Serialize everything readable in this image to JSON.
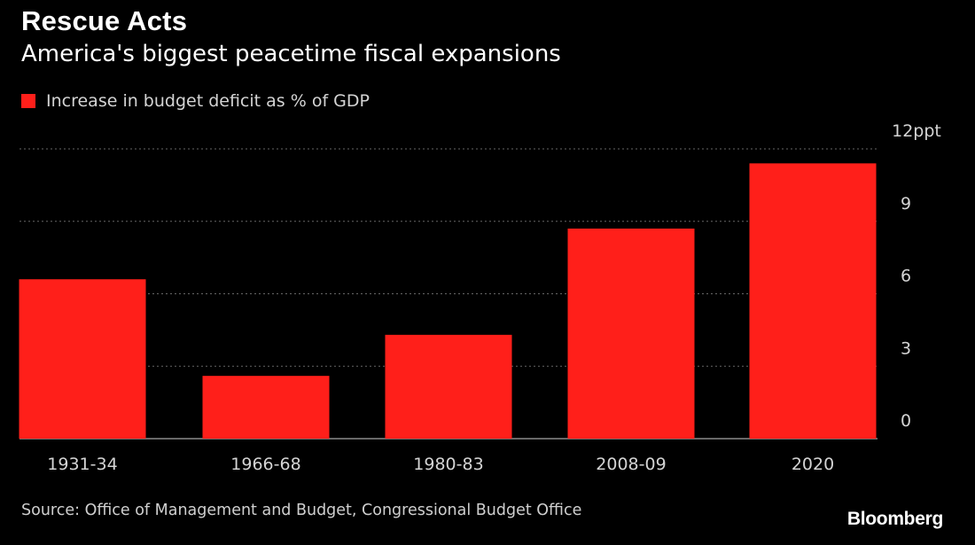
{
  "header": {
    "title": "Rescue Acts",
    "subtitle": "America's biggest peacetime fiscal expansions"
  },
  "legend": {
    "label": "Increase in budget deficit as % of GDP"
  },
  "footer": {
    "source": "Source: Office of Management and Budget, Congressional Budget Office",
    "brand": "Bloomberg"
  },
  "colors": {
    "bar": "#ff1f1a",
    "background": "#000000",
    "grid": "#666666"
  },
  "chart_data": {
    "type": "bar",
    "title": "Rescue Acts",
    "subtitle": "America's biggest peacetime fiscal expansions",
    "xlabel": "",
    "ylabel": "",
    "categories": [
      "1931-34",
      "1966-68",
      "1980-83",
      "2008-09",
      "2020"
    ],
    "series": [
      {
        "name": "Increase in budget deficit as % of GDP",
        "values": [
          6.6,
          2.6,
          4.3,
          8.7,
          11.4
        ]
      }
    ],
    "ylim": [
      0,
      12
    ],
    "yticks": [
      0,
      3,
      6,
      9,
      12
    ],
    "ytick_labels": [
      "0",
      "3",
      "6",
      "9",
      "12ppt"
    ],
    "grid": true,
    "y_axis_side": "right",
    "legend_position": "top-left"
  }
}
